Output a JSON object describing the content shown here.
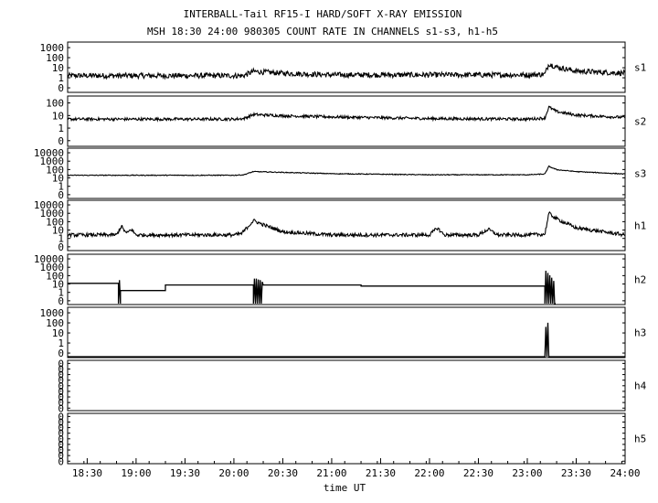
{
  "title_line1": "INTERBALL-Tail RF15-I HARD/SOFT X-RAY EMISSION",
  "title_line2": "MSH 18:30 24:00 980305  COUNT RATE IN CHANNELS s1-s3, h1-h5",
  "xlabel": "time UT",
  "chart_data": {
    "type": "line",
    "title": "INTERBALL-Tail RF15-I HARD/SOFT X-RAY EMISSION",
    "subtitle": "MSH 18:30 24:00 980305  COUNT RATE IN CHANNELS s1-s3, h1-h5",
    "xlabel": "time UT",
    "x_ticks": [
      "18:30",
      "19:00",
      "19:30",
      "20:00",
      "20:30",
      "21:00",
      "21:30",
      "22:00",
      "22:30",
      "23:00",
      "23:30",
      "24:00"
    ],
    "xlim_hours": [
      18.3,
      24.0
    ],
    "y_scale": "log",
    "panels": [
      {
        "name": "s1",
        "y_ticks": [
          "1000",
          "100",
          "10",
          "1",
          "0"
        ],
        "series": [
          {
            "x": [
              18.3,
              20.0,
              20.1,
              20.2,
              20.5,
              21.0,
              23.0,
              23.18,
              23.22,
              23.3,
              23.5,
              24.0
            ],
            "y": [
              5,
              5,
              5,
              14,
              9,
              6,
              6,
              7,
              90,
              40,
              15,
              9
            ],
            "noise": 0.28
          }
        ]
      },
      {
        "name": "s2",
        "y_ticks": [
          "100",
          "10",
          "1",
          "0"
        ],
        "series": [
          {
            "x": [
              18.3,
              20.0,
              20.1,
              20.2,
              20.5,
              21.0,
              22.0,
              23.0,
              23.18,
              23.22,
              23.3,
              23.5,
              24.0
            ],
            "y": [
              18,
              18,
              20,
              45,
              35,
              28,
              20,
              18,
              22,
              200,
              80,
              40,
              25
            ],
            "noise": 0.12
          }
        ]
      },
      {
        "name": "s3",
        "y_ticks": [
          "10000",
          "1000",
          "100",
          "10",
          "1",
          "0"
        ],
        "series": [
          {
            "x": [
              18.3,
              20.0,
              20.1,
              20.2,
              20.5,
              21.0,
              22.0,
              23.0,
              23.18,
              23.22,
              23.3,
              23.5,
              24.0
            ],
            "y": [
              70,
              70,
              80,
              200,
              160,
              110,
              80,
              80,
              100,
              900,
              350,
              200,
              100
            ],
            "noise": 0.05
          }
        ]
      },
      {
        "name": "h1",
        "y_ticks": [
          "10000",
          "1000",
          "100",
          "10",
          "1",
          "0"
        ],
        "series": [
          {
            "x": [
              18.3,
              18.8,
              18.85,
              18.9,
              18.95,
              19.0,
              20.0,
              20.08,
              20.2,
              20.3,
              20.5,
              21.0,
              22.0,
              22.08,
              22.15,
              22.5,
              22.6,
              22.7,
              23.0,
              23.18,
              23.22,
              23.3,
              23.5,
              24.0
            ],
            "y": [
              8,
              8,
              100,
              12,
              40,
              8,
              8,
              12,
              500,
              150,
              20,
              8,
              8,
              60,
              8,
              8,
              40,
              8,
              8,
              10,
              4000,
              800,
              60,
              8
            ],
            "noise": 0.22
          }
        ]
      },
      {
        "name": "h2",
        "y_ticks": [
          "10000",
          "1000",
          "100",
          "10",
          "1",
          "0"
        ],
        "series": [
          {
            "x": [
              18.3,
              18.82,
              18.82,
              18.83,
              18.84,
              18.84,
              19.3,
              19.3,
              20.2,
              20.2,
              20.21,
              20.22,
              20.23,
              20.24,
              20.25,
              20.26,
              20.27,
              20.28,
              20.29,
              20.3,
              21.3,
              21.3,
              23.18,
              23.18,
              23.19,
              23.2,
              23.21,
              23.22,
              23.23,
              23.24,
              23.25,
              23.26,
              23.27,
              23.28,
              23.29
            ],
            "y": [
              40,
              40,
              0,
              100,
              0,
              5,
              5,
              25,
              25,
              0,
              150,
              0,
              150,
              0,
              120,
              0,
              100,
              0,
              60,
              25,
              25,
              18,
              18,
              0,
              1500,
              0,
              800,
              0,
              400,
              0,
              200,
              0,
              80,
              0,
              0
            ],
            "noise": 0
          }
        ]
      },
      {
        "name": "h3",
        "y_ticks": [
          "1000",
          "100",
          "10",
          "1",
          "0"
        ],
        "series": [
          {
            "x": [
              18.3,
              23.18,
              23.19,
              23.2,
              23.21,
              23.22,
              23.23,
              24.0
            ],
            "y": [
              0,
              0,
              150,
              0,
              400,
              0,
              0,
              0
            ],
            "noise": 0
          }
        ]
      },
      {
        "name": "h4",
        "y_ticks": [
          "0",
          "0",
          "0",
          "0",
          "0",
          "0",
          "0",
          "0",
          "0"
        ],
        "series": []
      },
      {
        "name": "h5",
        "y_ticks": [
          "0",
          "0",
          "0",
          "0",
          "0",
          "0",
          "0",
          "0",
          "0"
        ],
        "series": []
      }
    ]
  }
}
